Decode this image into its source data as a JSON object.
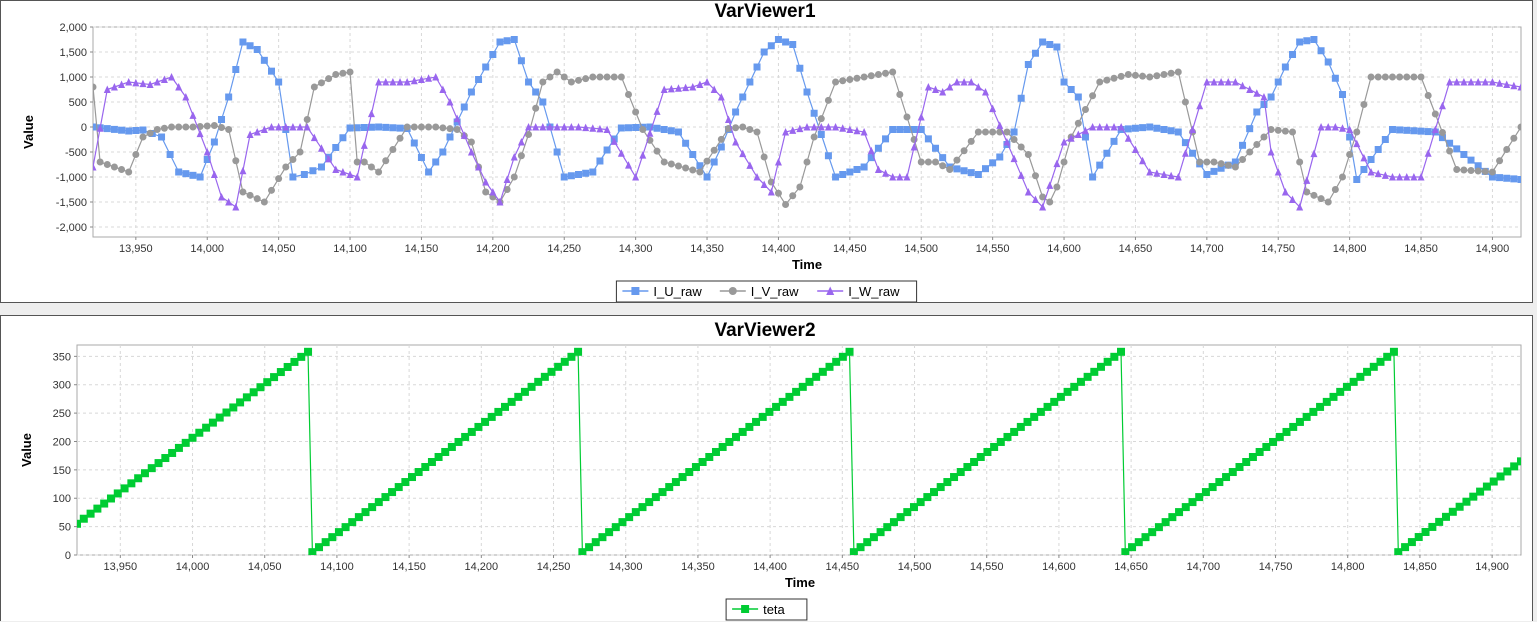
{
  "chart_data": [
    {
      "type": "line",
      "title": "VarViewer1",
      "xlabel": "Time",
      "ylabel": "Value",
      "xlim": [
        13920,
        14920
      ],
      "ylim": [
        -2200,
        2000
      ],
      "x_ticks": [
        13950,
        14000,
        14050,
        14100,
        14150,
        14200,
        14250,
        14300,
        14350,
        14400,
        14450,
        14500,
        14550,
        14600,
        14650,
        14700,
        14750,
        14800,
        14850,
        14900
      ],
      "y_ticks": [
        -2000,
        -1500,
        -1000,
        -500,
        0,
        500,
        1000,
        1500,
        2000
      ],
      "grid": true,
      "legend": "bottom",
      "sample_interval": 4.5,
      "series": [
        {
          "name": "I_U_raw",
          "color": "#6699ee",
          "marker": "square",
          "x": [
            13920,
            13945,
            13955,
            13968,
            13980,
            13995,
            14005,
            14015,
            14025,
            14035,
            14050,
            14060,
            14068,
            14080,
            14100,
            14120,
            14140,
            14155,
            14165,
            14175,
            14185,
            14195,
            14205,
            14215,
            14225,
            14235,
            14250,
            14270,
            14290,
            14310,
            14330,
            14350,
            14360,
            14370,
            14380,
            14390,
            14400,
            14410,
            14420,
            14440,
            14460,
            14480,
            14500,
            14520,
            14540,
            14555,
            14565,
            14575,
            14585,
            14595,
            14600,
            14610,
            14620,
            14640,
            14660,
            14680,
            14700,
            14720,
            14735,
            14745,
            14755,
            14765,
            14775,
            14785,
            14795,
            14805,
            14830,
            14860,
            14900,
            14920
          ],
          "y": [
            0,
            -80,
            -60,
            -200,
            -900,
            -1000,
            -300,
            600,
            1700,
            1550,
            900,
            -1000,
            -950,
            -800,
            -20,
            0,
            -30,
            -900,
            -500,
            100,
            700,
            1200,
            1700,
            1750,
            900,
            500,
            -1000,
            -900,
            -20,
            0,
            -100,
            -1000,
            -400,
            300,
            900,
            1500,
            1750,
            1650,
            700,
            -1000,
            -800,
            -50,
            -50,
            -800,
            -950,
            -600,
            -100,
            1250,
            1700,
            1600,
            900,
            600,
            -1000,
            -50,
            0,
            -100,
            -950,
            -700,
            300,
            600,
            1200,
            1700,
            1750,
            1300,
            650,
            -1050,
            -50,
            -100,
            -1000,
            -1050
          ]
        },
        {
          "name": "I_V_raw",
          "color": "#999999",
          "marker": "circle",
          "x": [
            13920,
            13925,
            13935,
            13945,
            13955,
            13965,
            13975,
            13990,
            14005,
            14015,
            14025,
            14040,
            14055,
            14065,
            14075,
            14090,
            14100,
            14105,
            14110,
            14120,
            14140,
            14160,
            14175,
            14185,
            14195,
            14205,
            14215,
            14225,
            14235,
            14245,
            14255,
            14270,
            14290,
            14305,
            14320,
            14345,
            14365,
            14375,
            14385,
            14395,
            14405,
            14415,
            14425,
            14440,
            14460,
            14480,
            14500,
            14510,
            14520,
            14540,
            14560,
            14575,
            14585,
            14590,
            14595,
            14605,
            14625,
            14645,
            14660,
            14680,
            14695,
            14705,
            14720,
            14745,
            14760,
            14770,
            14785,
            14795,
            14805,
            14815,
            14830,
            14850,
            14875,
            14900,
            14920
          ],
          "y": [
            800,
            -700,
            -800,
            -900,
            -200,
            -50,
            0,
            0,
            30,
            -50,
            -1300,
            -1500,
            -800,
            -500,
            800,
            1050,
            1100,
            -700,
            -700,
            -900,
            0,
            0,
            -50,
            -300,
            -1300,
            -1500,
            -1000,
            -150,
            900,
            1100,
            900,
            1000,
            1000,
            -50,
            -700,
            -900,
            -30,
            0,
            -100,
            -1100,
            -1550,
            -1200,
            -200,
            900,
            1000,
            1100,
            -700,
            -700,
            -850,
            -100,
            -100,
            -550,
            -1400,
            -1500,
            -1200,
            -200,
            900,
            1050,
            1000,
            1100,
            -700,
            -700,
            -800,
            -50,
            -100,
            -1300,
            -1500,
            -1000,
            -100,
            1000,
            1000,
            1000,
            -850,
            -900,
            0
          ]
        },
        {
          "name": "I_W_raw",
          "color": "#9966ee",
          "marker": "triangle",
          "x": [
            13920,
            13930,
            13945,
            13960,
            13975,
            13985,
            14000,
            14010,
            14020,
            14030,
            14045,
            14070,
            14090,
            14105,
            14120,
            14140,
            14160,
            14170,
            14185,
            14195,
            14205,
            14215,
            14225,
            14235,
            14260,
            14280,
            14300,
            14320,
            14340,
            14350,
            14360,
            14370,
            14385,
            14395,
            14405,
            14420,
            14440,
            14460,
            14470,
            14480,
            14490,
            14505,
            14515,
            14525,
            14535,
            14545,
            14560,
            14575,
            14585,
            14600,
            14620,
            14640,
            14660,
            14680,
            14700,
            14720,
            14740,
            14745,
            14755,
            14765,
            14780,
            14790,
            14800,
            14815,
            14830,
            14850,
            14870,
            14900,
            14920
          ],
          "y": [
            -800,
            750,
            900,
            850,
            1000,
            600,
            -500,
            -1400,
            -1600,
            -150,
            0,
            0,
            -850,
            -1000,
            900,
            900,
            1000,
            500,
            -500,
            -1100,
            -1500,
            -600,
            0,
            0,
            0,
            -50,
            -1000,
            750,
            800,
            900,
            600,
            -300,
            -1000,
            -1300,
            -100,
            0,
            0,
            -100,
            -850,
            -1000,
            -1000,
            800,
            700,
            900,
            900,
            700,
            -300,
            -1300,
            -1600,
            -300,
            0,
            0,
            -900,
            -1000,
            900,
            900,
            600,
            -500,
            -1300,
            -1600,
            0,
            0,
            -50,
            -900,
            -1000,
            -1000,
            900,
            900,
            800
          ]
        }
      ]
    },
    {
      "type": "line",
      "title": "VarViewer2",
      "xlabel": "Time",
      "ylabel": "Value",
      "xlim": [
        13920,
        14920
      ],
      "ylim": [
        0,
        370
      ],
      "x_ticks": [
        13950,
        14000,
        14050,
        14100,
        14150,
        14200,
        14250,
        14300,
        14350,
        14400,
        14450,
        14500,
        14550,
        14600,
        14650,
        14700,
        14750,
        14800,
        14850,
        14900
      ],
      "y_ticks": [
        0,
        50,
        100,
        150,
        200,
        250,
        300,
        350
      ],
      "grid": true,
      "legend": "bottom",
      "sample_interval": 4.6,
      "series": [
        {
          "name": "teta",
          "color": "#00cc33",
          "marker": "square",
          "x": [
            13920,
            14080,
            14083,
            14267,
            14270,
            14455,
            14458,
            14643,
            14646,
            14832,
            14835,
            14920
          ],
          "y": [
            55,
            358,
            5,
            358,
            5,
            358,
            5,
            358,
            5,
            358,
            5,
            165
          ]
        }
      ]
    }
  ]
}
